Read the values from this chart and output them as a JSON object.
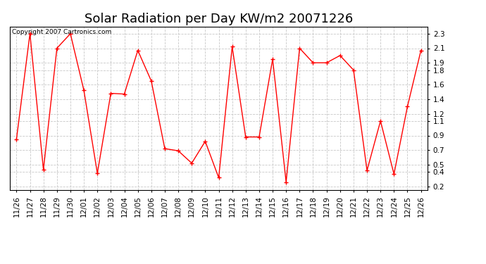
{
  "title": "Solar Radiation per Day KW/m2 20071226",
  "copyright": "Copyright 2007 Cartronics.com",
  "labels": [
    "11/26",
    "11/27",
    "11/28",
    "11/29",
    "11/30",
    "12/01",
    "12/02",
    "12/03",
    "12/04",
    "12/05",
    "12/06",
    "12/07",
    "12/08",
    "12/09",
    "12/10",
    "12/11",
    "12/12",
    "12/13",
    "12/14",
    "12/15",
    "12/16",
    "12/17",
    "12/18",
    "12/19",
    "12/20",
    "12/21",
    "12/22",
    "12/23",
    "12/24",
    "12/25",
    "12/26"
  ],
  "values": [
    0.85,
    2.3,
    0.43,
    2.1,
    2.3,
    1.52,
    0.38,
    1.48,
    1.47,
    2.07,
    1.65,
    0.72,
    0.69,
    0.52,
    0.82,
    0.32,
    2.12,
    0.88,
    0.88,
    1.95,
    0.26,
    2.1,
    1.9,
    1.9,
    2.0,
    1.8,
    0.42,
    1.1,
    0.37,
    1.3,
    2.07
  ],
  "line_color": "#ff0000",
  "marker": "+",
  "bg_color": "#ffffff",
  "grid_color": "#c8c8c8",
  "ylim": [
    0.15,
    2.4
  ],
  "yticks": [
    0.2,
    0.4,
    0.5,
    0.7,
    0.9,
    1.1,
    1.2,
    1.4,
    1.6,
    1.8,
    1.9,
    2.1,
    2.3
  ],
  "title_fontsize": 13,
  "tick_fontsize": 7.5,
  "copyright_fontsize": 6.5
}
